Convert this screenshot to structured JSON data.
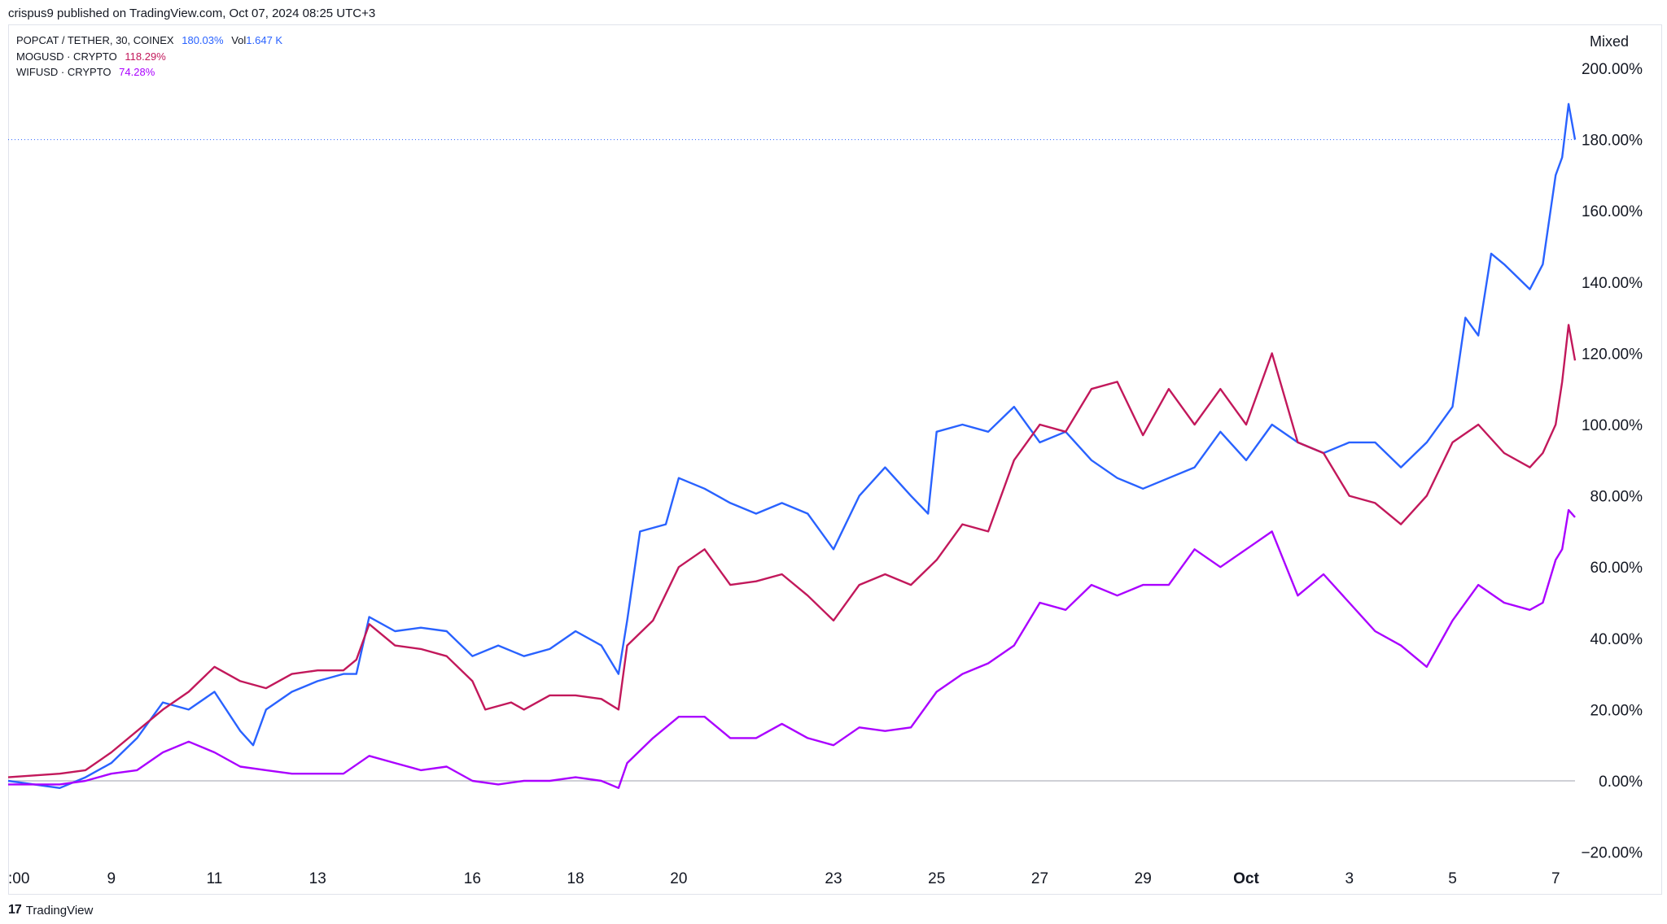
{
  "header": {
    "published": "crispus9 published on TradingView.com, Oct 07, 2024 08:25 UTC+3"
  },
  "legend": [
    {
      "symbol": "POPCAT / TETHER, 30, COINEX",
      "value": "180.03%",
      "vol_label": "Vol",
      "vol_value": "1.647 K",
      "color": "#2962ff"
    },
    {
      "symbol": "MOGUSD · CRYPTO",
      "value": "118.29%",
      "color": "#c2185b"
    },
    {
      "symbol": "WIFUSD · CRYPTO",
      "value": "74.28%",
      "color": "#aa00ff"
    }
  ],
  "scale_button": "Mixed",
  "footer": {
    "brand": "TradingView",
    "logo": "tradingview-logo-icon"
  },
  "chart_data": {
    "type": "line",
    "y_unit": "%",
    "ylim": [
      -20,
      200
    ],
    "y_ticks": [
      -20,
      0,
      20,
      40,
      60,
      80,
      100,
      120,
      140,
      160,
      180,
      200
    ],
    "y_tick_labels": [
      "−20.00%",
      "0.00%",
      "20.00%",
      "40.00%",
      "60.00%",
      "80.00%",
      "100.00%",
      "120.00%",
      "140.00%",
      "160.00%",
      "180.00%",
      "200.00%"
    ],
    "xlim": [
      "2024-09-07",
      "2024-10-07 09:00"
    ],
    "x_ticks": [
      {
        "date": "2024-09-07",
        "label": ":00"
      },
      {
        "date": "2024-09-09",
        "label": "9"
      },
      {
        "date": "2024-09-11",
        "label": "11"
      },
      {
        "date": "2024-09-13",
        "label": "13"
      },
      {
        "date": "2024-09-16",
        "label": "16"
      },
      {
        "date": "2024-09-18",
        "label": "18"
      },
      {
        "date": "2024-09-20",
        "label": "20"
      },
      {
        "date": "2024-09-23",
        "label": "23"
      },
      {
        "date": "2024-09-25",
        "label": "25"
      },
      {
        "date": "2024-09-27",
        "label": "27"
      },
      {
        "date": "2024-09-29",
        "label": "29"
      },
      {
        "date": "2024-10-01",
        "label": "Oct"
      },
      {
        "date": "2024-10-03",
        "label": "3"
      },
      {
        "date": "2024-10-05",
        "label": "5"
      },
      {
        "date": "2024-10-07",
        "label": "7"
      }
    ],
    "reference_line": 0,
    "last_price_line": 180,
    "series": [
      {
        "name": "POPCAT / TETHER, 30, COINEX",
        "color": "#2962ff",
        "points": [
          [
            "2024-09-07",
            0
          ],
          [
            "2024-09-08",
            -2
          ],
          [
            "2024-09-08 12:00",
            1
          ],
          [
            "2024-09-09",
            5
          ],
          [
            "2024-09-09 12:00",
            12
          ],
          [
            "2024-09-10",
            22
          ],
          [
            "2024-09-10 12:00",
            20
          ],
          [
            "2024-09-11",
            25
          ],
          [
            "2024-09-11 12:00",
            14
          ],
          [
            "2024-09-11 18:00",
            10
          ],
          [
            "2024-09-12",
            20
          ],
          [
            "2024-09-12 12:00",
            25
          ],
          [
            "2024-09-13",
            28
          ],
          [
            "2024-09-13 12:00",
            30
          ],
          [
            "2024-09-13 18:00",
            30
          ],
          [
            "2024-09-14",
            46
          ],
          [
            "2024-09-14 12:00",
            42
          ],
          [
            "2024-09-15",
            43
          ],
          [
            "2024-09-15 12:00",
            42
          ],
          [
            "2024-09-16",
            35
          ],
          [
            "2024-09-16 12:00",
            38
          ],
          [
            "2024-09-17",
            35
          ],
          [
            "2024-09-17 12:00",
            37
          ],
          [
            "2024-09-18",
            42
          ],
          [
            "2024-09-18 12:00",
            38
          ],
          [
            "2024-09-18 20:00",
            30
          ],
          [
            "2024-09-19",
            45
          ],
          [
            "2024-09-19 06:00",
            70
          ],
          [
            "2024-09-19 18:00",
            72
          ],
          [
            "2024-09-20",
            85
          ],
          [
            "2024-09-20 12:00",
            82
          ],
          [
            "2024-09-21",
            78
          ],
          [
            "2024-09-21 12:00",
            75
          ],
          [
            "2024-09-22",
            78
          ],
          [
            "2024-09-22 12:00",
            75
          ],
          [
            "2024-09-23",
            65
          ],
          [
            "2024-09-23 12:00",
            80
          ],
          [
            "2024-09-24",
            88
          ],
          [
            "2024-09-24 12:00",
            80
          ],
          [
            "2024-09-24 20:00",
            75
          ],
          [
            "2024-09-25",
            98
          ],
          [
            "2024-09-25 12:00",
            100
          ],
          [
            "2024-09-26",
            98
          ],
          [
            "2024-09-26 12:00",
            105
          ],
          [
            "2024-09-27",
            95
          ],
          [
            "2024-09-27 12:00",
            98
          ],
          [
            "2024-09-28",
            90
          ],
          [
            "2024-09-28 12:00",
            85
          ],
          [
            "2024-09-29",
            82
          ],
          [
            "2024-09-29 12:00",
            85
          ],
          [
            "2024-09-30",
            88
          ],
          [
            "2024-09-30 12:00",
            98
          ],
          [
            "2024-10-01",
            90
          ],
          [
            "2024-10-01 12:00",
            100
          ],
          [
            "2024-10-02",
            95
          ],
          [
            "2024-10-02 12:00",
            92
          ],
          [
            "2024-10-03",
            95
          ],
          [
            "2024-10-03 12:00",
            95
          ],
          [
            "2024-10-04",
            88
          ],
          [
            "2024-10-04 12:00",
            95
          ],
          [
            "2024-10-05",
            105
          ],
          [
            "2024-10-05 06:00",
            130
          ],
          [
            "2024-10-05 12:00",
            125
          ],
          [
            "2024-10-05 18:00",
            148
          ],
          [
            "2024-10-06",
            145
          ],
          [
            "2024-10-06 12:00",
            138
          ],
          [
            "2024-10-06 18:00",
            145
          ],
          [
            "2024-10-07",
            170
          ],
          [
            "2024-10-07 03:00",
            175
          ],
          [
            "2024-10-07 06:00",
            190
          ],
          [
            "2024-10-07 09:00",
            180
          ]
        ]
      },
      {
        "name": "MOGUSD · CRYPTO",
        "color": "#c2185b",
        "points": [
          [
            "2024-09-07",
            1
          ],
          [
            "2024-09-08",
            2
          ],
          [
            "2024-09-08 12:00",
            3
          ],
          [
            "2024-09-09",
            8
          ],
          [
            "2024-09-09 12:00",
            14
          ],
          [
            "2024-09-10",
            20
          ],
          [
            "2024-09-10 12:00",
            25
          ],
          [
            "2024-09-11",
            32
          ],
          [
            "2024-09-11 12:00",
            28
          ],
          [
            "2024-09-12",
            26
          ],
          [
            "2024-09-12 12:00",
            30
          ],
          [
            "2024-09-13",
            31
          ],
          [
            "2024-09-13 12:00",
            31
          ],
          [
            "2024-09-13 18:00",
            34
          ],
          [
            "2024-09-14",
            44
          ],
          [
            "2024-09-14 12:00",
            38
          ],
          [
            "2024-09-15",
            37
          ],
          [
            "2024-09-15 12:00",
            35
          ],
          [
            "2024-09-16",
            28
          ],
          [
            "2024-09-16 06:00",
            20
          ],
          [
            "2024-09-16 18:00",
            22
          ],
          [
            "2024-09-17",
            20
          ],
          [
            "2024-09-17 12:00",
            24
          ],
          [
            "2024-09-18",
            24
          ],
          [
            "2024-09-18 12:00",
            23
          ],
          [
            "2024-09-18 20:00",
            20
          ],
          [
            "2024-09-19",
            38
          ],
          [
            "2024-09-19 12:00",
            45
          ],
          [
            "2024-09-20",
            60
          ],
          [
            "2024-09-20 12:00",
            65
          ],
          [
            "2024-09-21",
            55
          ],
          [
            "2024-09-21 12:00",
            56
          ],
          [
            "2024-09-22",
            58
          ],
          [
            "2024-09-22 12:00",
            52
          ],
          [
            "2024-09-23",
            45
          ],
          [
            "2024-09-23 12:00",
            55
          ],
          [
            "2024-09-24",
            58
          ],
          [
            "2024-09-24 12:00",
            55
          ],
          [
            "2024-09-25",
            62
          ],
          [
            "2024-09-25 12:00",
            72
          ],
          [
            "2024-09-26",
            70
          ],
          [
            "2024-09-26 12:00",
            90
          ],
          [
            "2024-09-27",
            100
          ],
          [
            "2024-09-27 12:00",
            98
          ],
          [
            "2024-09-28",
            110
          ],
          [
            "2024-09-28 12:00",
            112
          ],
          [
            "2024-09-29",
            97
          ],
          [
            "2024-09-29 12:00",
            110
          ],
          [
            "2024-09-30",
            100
          ],
          [
            "2024-09-30 12:00",
            110
          ],
          [
            "2024-10-01",
            100
          ],
          [
            "2024-10-01 12:00",
            120
          ],
          [
            "2024-10-02",
            95
          ],
          [
            "2024-10-02 12:00",
            92
          ],
          [
            "2024-10-03",
            80
          ],
          [
            "2024-10-03 12:00",
            78
          ],
          [
            "2024-10-04",
            72
          ],
          [
            "2024-10-04 12:00",
            80
          ],
          [
            "2024-10-05",
            95
          ],
          [
            "2024-10-05 12:00",
            100
          ],
          [
            "2024-10-06",
            92
          ],
          [
            "2024-10-06 12:00",
            88
          ],
          [
            "2024-10-06 18:00",
            92
          ],
          [
            "2024-10-07",
            100
          ],
          [
            "2024-10-07 03:00",
            112
          ],
          [
            "2024-10-07 06:00",
            128
          ],
          [
            "2024-10-07 09:00",
            118
          ]
        ]
      },
      {
        "name": "WIFUSD · CRYPTO",
        "color": "#aa00ff",
        "points": [
          [
            "2024-09-07",
            -1
          ],
          [
            "2024-09-08",
            -1
          ],
          [
            "2024-09-08 12:00",
            0
          ],
          [
            "2024-09-09",
            2
          ],
          [
            "2024-09-09 12:00",
            3
          ],
          [
            "2024-09-10",
            8
          ],
          [
            "2024-09-10 12:00",
            11
          ],
          [
            "2024-09-11",
            8
          ],
          [
            "2024-09-11 12:00",
            4
          ],
          [
            "2024-09-12",
            3
          ],
          [
            "2024-09-12 12:00",
            2
          ],
          [
            "2024-09-13",
            2
          ],
          [
            "2024-09-13 12:00",
            2
          ],
          [
            "2024-09-14",
            7
          ],
          [
            "2024-09-14 12:00",
            5
          ],
          [
            "2024-09-15",
            3
          ],
          [
            "2024-09-15 12:00",
            4
          ],
          [
            "2024-09-16",
            0
          ],
          [
            "2024-09-16 12:00",
            -1
          ],
          [
            "2024-09-17",
            0
          ],
          [
            "2024-09-17 12:00",
            0
          ],
          [
            "2024-09-18",
            1
          ],
          [
            "2024-09-18 12:00",
            0
          ],
          [
            "2024-09-18 20:00",
            -2
          ],
          [
            "2024-09-19",
            5
          ],
          [
            "2024-09-19 12:00",
            12
          ],
          [
            "2024-09-20",
            18
          ],
          [
            "2024-09-20 12:00",
            18
          ],
          [
            "2024-09-21",
            12
          ],
          [
            "2024-09-21 12:00",
            12
          ],
          [
            "2024-09-22",
            16
          ],
          [
            "2024-09-22 12:00",
            12
          ],
          [
            "2024-09-23",
            10
          ],
          [
            "2024-09-23 12:00",
            15
          ],
          [
            "2024-09-24",
            14
          ],
          [
            "2024-09-24 12:00",
            15
          ],
          [
            "2024-09-25",
            25
          ],
          [
            "2024-09-25 12:00",
            30
          ],
          [
            "2024-09-26",
            33
          ],
          [
            "2024-09-26 12:00",
            38
          ],
          [
            "2024-09-27",
            50
          ],
          [
            "2024-09-27 12:00",
            48
          ],
          [
            "2024-09-28",
            55
          ],
          [
            "2024-09-28 12:00",
            52
          ],
          [
            "2024-09-29",
            55
          ],
          [
            "2024-09-29 12:00",
            55
          ],
          [
            "2024-09-30",
            65
          ],
          [
            "2024-09-30 12:00",
            60
          ],
          [
            "2024-10-01",
            65
          ],
          [
            "2024-10-01 12:00",
            70
          ],
          [
            "2024-10-02",
            52
          ],
          [
            "2024-10-02 12:00",
            58
          ],
          [
            "2024-10-03",
            50
          ],
          [
            "2024-10-03 12:00",
            42
          ],
          [
            "2024-10-04",
            38
          ],
          [
            "2024-10-04 12:00",
            32
          ],
          [
            "2024-10-05",
            45
          ],
          [
            "2024-10-05 12:00",
            55
          ],
          [
            "2024-10-06",
            50
          ],
          [
            "2024-10-06 12:00",
            48
          ],
          [
            "2024-10-06 18:00",
            50
          ],
          [
            "2024-10-07",
            62
          ],
          [
            "2024-10-07 03:00",
            65
          ],
          [
            "2024-10-07 06:00",
            76
          ],
          [
            "2024-10-07 09:00",
            74
          ]
        ]
      }
    ]
  }
}
